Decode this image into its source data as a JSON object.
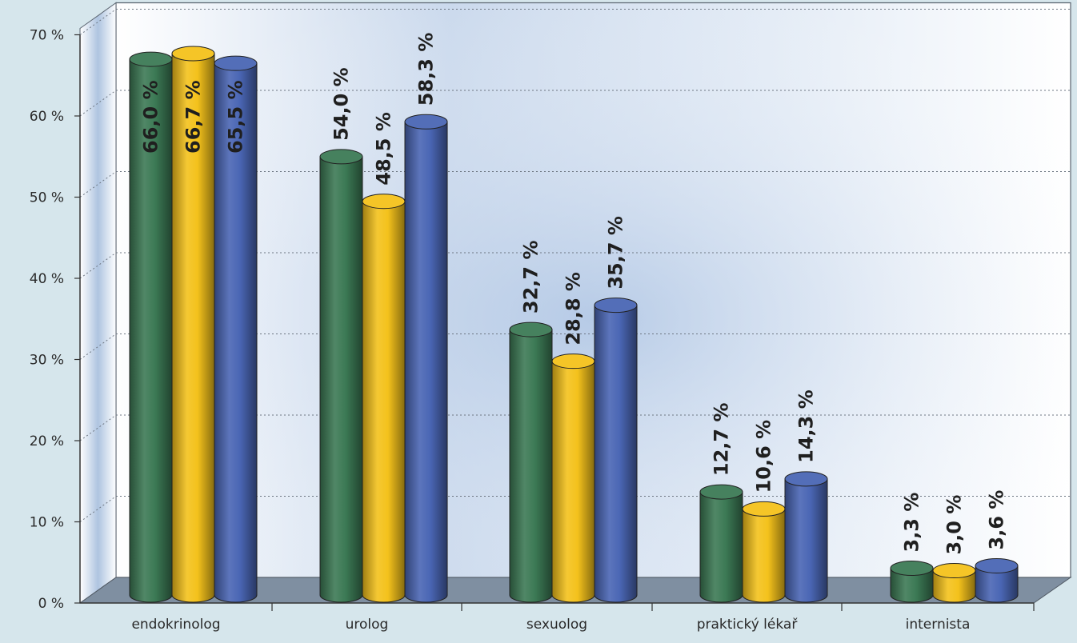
{
  "chart_data": {
    "type": "bar",
    "categories": [
      "endokrinolog",
      "urolog",
      "sexuolog",
      "praktický lékař",
      "internista"
    ],
    "series": [
      {
        "color": "#3c7a55",
        "values": [
          66.0,
          54.0,
          32.7,
          12.7,
          3.3
        ],
        "labels": [
          "66,0 %",
          "54,0 %",
          "32,7 %",
          "12,7 %",
          "3,3 %"
        ]
      },
      {
        "color": "#f4c21c",
        "values": [
          66.7,
          48.5,
          28.8,
          10.6,
          3.0
        ],
        "labels": [
          "66,7 %",
          "48,5 %",
          "28,8 %",
          "10,6 %",
          "3,0 %"
        ]
      },
      {
        "color": "#4a66b4",
        "values": [
          65.5,
          58.3,
          35.7,
          14.3,
          3.6
        ],
        "labels": [
          "65,5 %",
          "58,3 %",
          "35,7 %",
          "14,3 %",
          "3,6 %"
        ]
      }
    ],
    "y_ticks": [
      "0 %",
      "10 %",
      "20 %",
      "30 %",
      "40 %",
      "50 %",
      "60 %",
      "70 %"
    ],
    "ylim": [
      0,
      70
    ],
    "grid": true,
    "legend": "none",
    "title": "",
    "xlabel": "",
    "ylabel": ""
  }
}
